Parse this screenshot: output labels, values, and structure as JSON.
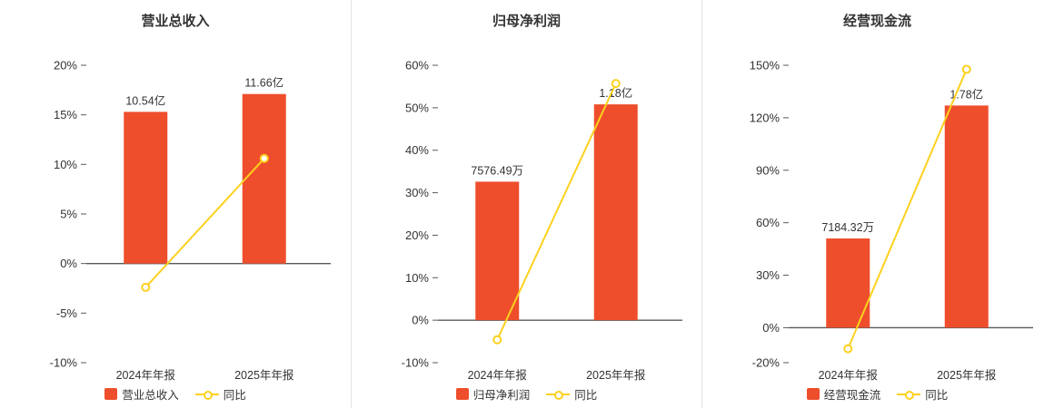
{
  "colors": {
    "bar": "#ee4e2c",
    "line": "#fdd11e",
    "axis": "#595959",
    "text": "#333333",
    "divider": "#e2e2e2"
  },
  "chart_data": [
    {
      "type": "bar+line",
      "title": "营业总收入",
      "categories": [
        "2024年年报",
        "2025年年报"
      ],
      "bar_series": {
        "name": "营业总收入",
        "labels": [
          "10.54亿",
          "11.66亿"
        ],
        "plot_pct": [
          15.3,
          17.1
        ]
      },
      "line_series": {
        "name": "同比",
        "values_pct": [
          -2.4,
          10.6
        ]
      },
      "ylim": [
        -10,
        20
      ],
      "yticks": [
        20,
        15,
        10,
        5,
        0,
        -5,
        -10
      ],
      "grid": false,
      "legend_position": "bottom"
    },
    {
      "type": "bar+line",
      "title": "归母净利润",
      "categories": [
        "2024年年报",
        "2025年年报"
      ],
      "bar_series": {
        "name": "归母净利润",
        "labels": [
          "7576.49万",
          "1.18亿"
        ],
        "plot_pct": [
          32.6,
          50.8
        ]
      },
      "line_series": {
        "name": "同比",
        "values_pct": [
          -4.6,
          55.7
        ]
      },
      "ylim": [
        -10,
        60
      ],
      "yticks": [
        60,
        50,
        40,
        30,
        20,
        10,
        0,
        -10
      ],
      "grid": false,
      "legend_position": "bottom"
    },
    {
      "type": "bar+line",
      "title": "经营现金流",
      "categories": [
        "2024年年报",
        "2025年年报"
      ],
      "bar_series": {
        "name": "经营现金流",
        "labels": [
          "7184.32万",
          "1.78亿"
        ],
        "plot_pct": [
          51,
          127
        ]
      },
      "line_series": {
        "name": "同比",
        "values_pct": [
          -12,
          147.7
        ]
      },
      "ylim": [
        -20,
        150
      ],
      "yticks": [
        150,
        120,
        90,
        60,
        30,
        0,
        -20
      ],
      "grid": false,
      "legend_position": "bottom"
    }
  ]
}
